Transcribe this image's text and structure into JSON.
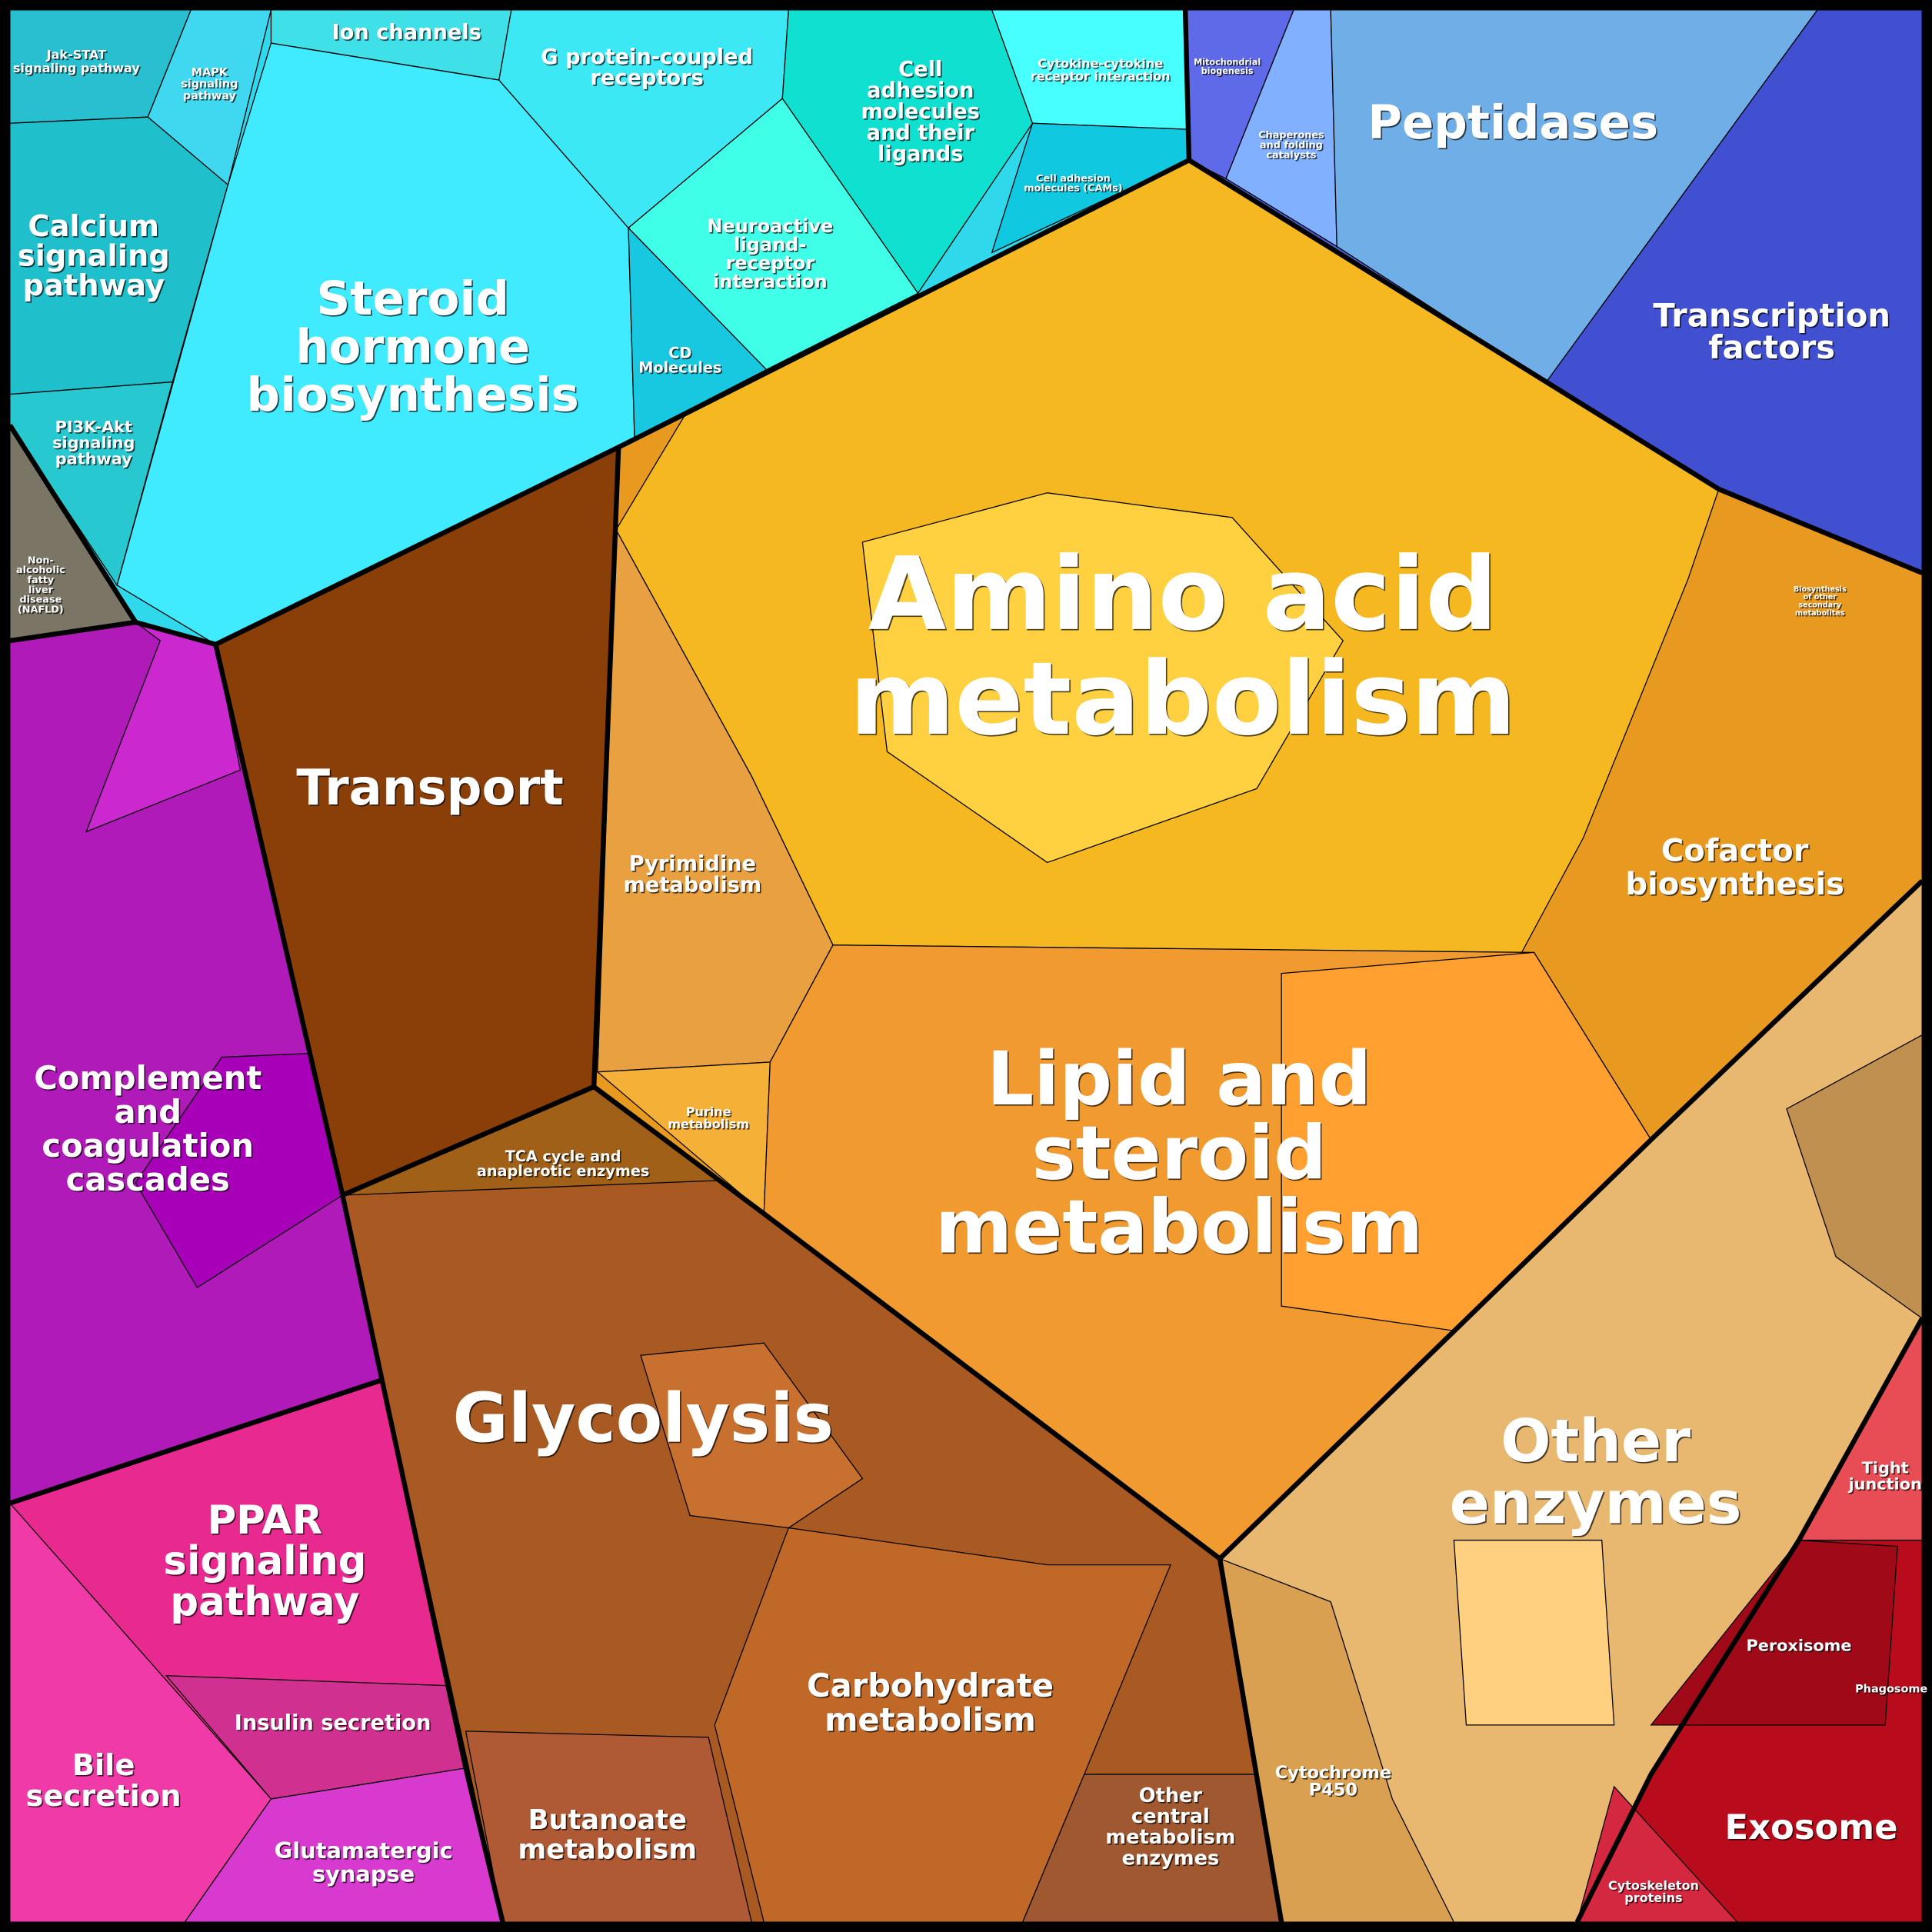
{
  "regions": [
    {
      "lines": [
        "Jak-STAT",
        "signaling pathway"
      ]
    },
    {
      "lines": [
        "MAPK",
        "signaling",
        "pathway"
      ]
    },
    {
      "lines": [
        "Ion channels"
      ]
    },
    {
      "lines": [
        "G protein-coupled",
        "receptors"
      ]
    },
    {
      "lines": [
        "Cell",
        "adhesion",
        "molecules",
        "and their",
        "ligands"
      ]
    },
    {
      "lines": [
        "Cytokine-cytokine",
        "receptor interaction"
      ]
    },
    {
      "lines": [
        "Cell adhesion",
        "molecules (CAMs)"
      ]
    },
    {
      "lines": [
        "Calcium",
        "signaling",
        "pathway"
      ]
    },
    {
      "lines": [
        "Steroid",
        "hormone",
        "biosynthesis"
      ]
    },
    {
      "lines": [
        "Neuroactive",
        "ligand-",
        "receptor",
        "interaction"
      ]
    },
    {
      "lines": [
        "CD",
        "Molecules"
      ]
    },
    {
      "lines": [
        "PI3K-Akt",
        "signaling",
        "pathway"
      ]
    },
    {
      "lines": [
        "Non-",
        "alcoholic",
        "fatty",
        "liver",
        "disease",
        "(NAFLD)"
      ]
    },
    {
      "lines": [
        "Mitochondrial",
        "biogenesis"
      ]
    },
    {
      "lines": [
        "Chaperones",
        "and folding",
        "catalysts"
      ]
    },
    {
      "lines": [
        "Peptidases"
      ]
    },
    {
      "lines": [
        "Transcription",
        "factors"
      ]
    },
    {
      "lines": [
        "Biosynthesis",
        "of other",
        "secondary",
        "metabolites"
      ]
    },
    {
      "lines": [
        "Amino acid",
        "metabolism"
      ]
    },
    {
      "lines": [
        "Transport"
      ]
    },
    {
      "lines": [
        "Pyrimidine",
        "metabolism"
      ]
    },
    {
      "lines": [
        "Cofactor",
        "biosynthesis"
      ]
    },
    {
      "lines": [
        "Lipid and",
        "steroid",
        "metabolism"
      ]
    },
    {
      "lines": [
        "Complement",
        "and",
        "coagulation",
        "cascades"
      ]
    },
    {
      "lines": [
        "Purine",
        "metabolism"
      ]
    },
    {
      "lines": [
        "TCA cycle and",
        "anaplerotic enzymes"
      ]
    },
    {
      "lines": [
        "Glycolysis"
      ]
    },
    {
      "lines": [
        "Other",
        "enzymes"
      ]
    },
    {
      "lines": [
        "Tight",
        "junction"
      ]
    },
    {
      "lines": [
        "PPAR",
        "signaling",
        "pathway"
      ]
    },
    {
      "lines": [
        "Peroxisome"
      ]
    },
    {
      "lines": [
        "Phagosome"
      ]
    },
    {
      "lines": [
        "Carbohydrate",
        "metabolism"
      ]
    },
    {
      "lines": [
        "Insulin secretion"
      ]
    },
    {
      "lines": [
        "Bile",
        "secretion"
      ]
    },
    {
      "lines": [
        "Cytochrome",
        "P450"
      ]
    },
    {
      "lines": [
        "Other",
        "central",
        "metabolism",
        "enzymes"
      ]
    },
    {
      "lines": [
        "Exosome"
      ]
    },
    {
      "lines": [
        "Butanoate",
        "metabolism"
      ]
    },
    {
      "lines": [
        "Glutamatergic",
        "synapse"
      ]
    },
    {
      "lines": [
        "Cytoskeleton",
        "proteins"
      ]
    }
  ]
}
